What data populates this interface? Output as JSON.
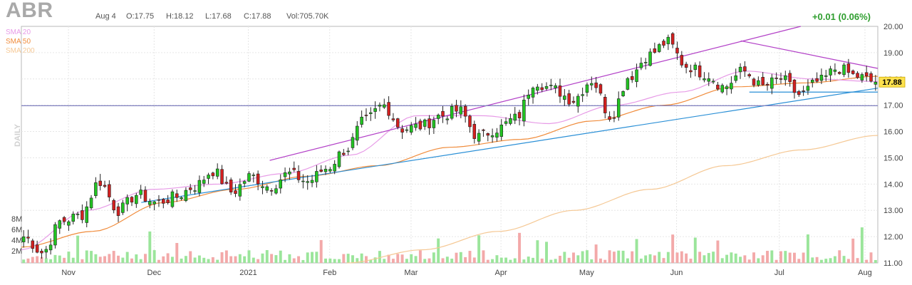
{
  "header": {
    "ticker": "ABR",
    "date": "Aug 4",
    "open": "O:17.75",
    "high": "H:18.12",
    "low": "L:17.68",
    "close": "C:17.88",
    "volume": "Vol:705.70K",
    "change": "+0.01 (0.06%)"
  },
  "legend": [
    {
      "label": "SMA 20",
      "color": "#e79be7"
    },
    {
      "label": "SMA 50",
      "color": "#f08c3c"
    },
    {
      "label": "SMA 200",
      "color": "#f5c894"
    }
  ],
  "colors": {
    "up": "#22c422",
    "down": "#d42020",
    "vol_up": "#9be59b",
    "vol_down": "#f3a9a9",
    "resistance": "#b23fc7",
    "support": "#2a8fd6",
    "horizontal": "#8080c0",
    "last_tag": "#ffe14d"
  },
  "chart_data": {
    "type": "candlestick",
    "period_label": "DAILY",
    "ylim": [
      11.0,
      20.0
    ],
    "yticks": [
      "11.00",
      "12.00",
      "13.00",
      "14.00",
      "15.00",
      "16.00",
      "17.00",
      "18.00",
      "19.00",
      "20.00"
    ],
    "volume_ticks": [
      "2M",
      "4M",
      "6M",
      "8M"
    ],
    "xticks": [
      "Nov",
      "Dec",
      "2021",
      "Feb",
      "Mar",
      "Apr",
      "May",
      "Jun",
      "Jul",
      "Aug"
    ],
    "last_price": "17.88",
    "sma_anchors": {
      "sma20": [
        11.5,
        13.0,
        13.8,
        14.0,
        14.4,
        15.1,
        16.6,
        16.6,
        16.3,
        17.0,
        17.5,
        18.3,
        18.0,
        17.9
      ],
      "sma50": [
        11.6,
        12.2,
        13.3,
        13.8,
        14.3,
        14.7,
        15.4,
        15.7,
        16.4,
        17.0,
        17.7,
        17.85,
        18.1
      ],
      "sma200": [
        11.0,
        11.5,
        12.2,
        13.0,
        13.8,
        14.7,
        15.3,
        15.85
      ]
    },
    "trendlines": [
      {
        "name": "resistance-channel",
        "from": [
          0.29,
          14.9
        ],
        "to": [
          0.91,
          20.0
        ]
      },
      {
        "name": "resistance-down",
        "from": [
          0.84,
          19.45
        ],
        "to": [
          1.0,
          18.4
        ]
      },
      {
        "name": "support-channel",
        "from": [
          0.14,
          13.3
        ],
        "to": [
          1.0,
          17.65
        ]
      },
      {
        "name": "support-flat",
        "from": [
          0.85,
          17.5
        ],
        "to": [
          1.0,
          17.5
        ]
      },
      {
        "name": "horizontal-17",
        "from": [
          0.0,
          16.98
        ],
        "to": [
          1.0,
          16.98
        ]
      }
    ],
    "price_anchors": [
      12.0,
      11.4,
      12.6,
      12.8,
      14.1,
      13.0,
      13.6,
      13.3,
      13.5,
      13.9,
      14.5,
      13.7,
      14.3,
      13.9,
      14.4,
      14.1,
      14.6,
      15.3,
      16.4,
      17.0,
      16.1,
      16.2,
      16.6,
      16.8,
      15.8,
      16.1,
      16.5,
      17.9,
      17.6,
      17.2,
      17.95,
      16.6,
      18.1,
      18.9,
      19.4,
      18.5,
      18.2,
      17.7,
      18.3,
      17.7,
      18.0,
      17.4,
      17.9,
      18.4,
      18.1,
      17.88
    ]
  }
}
